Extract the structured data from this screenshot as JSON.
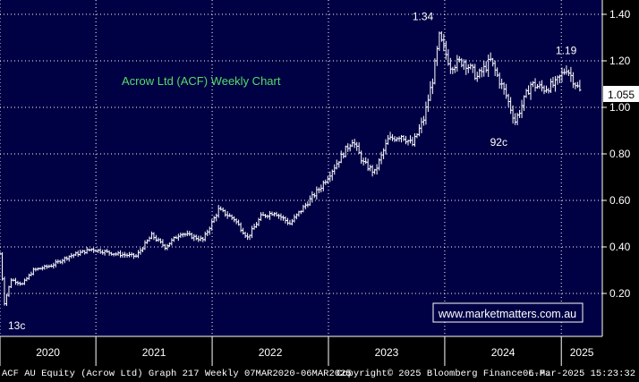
{
  "chart_data": {
    "type": "line",
    "style": "ohlc-weekly",
    "title": "Acrow Ltd (ACF) Weekly Chart",
    "xlabel": "",
    "ylabel": "",
    "x_ticks": [
      "2020",
      "2021",
      "2022",
      "2023",
      "2024",
      "2025"
    ],
    "y_ticks": [
      "0.20",
      "0.40",
      "0.60",
      "0.80",
      "1.00",
      "1.20",
      "1.40"
    ],
    "ylim": [
      0.0,
      1.44
    ],
    "grid": true,
    "last_price": "1.055",
    "annotations": [
      {
        "label": "13c",
        "date": "2020-03-20",
        "value": 0.13
      },
      {
        "label": "1.34",
        "date": "2023-12-15",
        "value": 1.34
      },
      {
        "label": "92c",
        "date": "2024-08-09",
        "value": 0.92
      },
      {
        "label": "1.19",
        "date": "2025-01-17",
        "value": 1.19
      }
    ],
    "series": [
      {
        "values": [
          [
            "2020-03-06",
            0.37
          ],
          [
            "2020-03-20",
            0.16
          ],
          [
            "2020-04-10",
            0.26
          ],
          [
            "2020-05-15",
            0.24
          ],
          [
            "2020-06-19",
            0.3
          ],
          [
            "2020-08-14",
            0.32
          ],
          [
            "2020-10-09",
            0.36
          ],
          [
            "2020-12-18",
            0.39
          ],
          [
            "2021-03-05",
            0.37
          ],
          [
            "2021-05-07",
            0.36
          ],
          [
            "2021-06-25",
            0.45
          ],
          [
            "2021-08-06",
            0.4
          ],
          [
            "2021-09-24",
            0.46
          ],
          [
            "2021-12-03",
            0.43
          ],
          [
            "2022-01-21",
            0.56
          ],
          [
            "2022-03-11",
            0.52
          ],
          [
            "2022-04-22",
            0.44
          ],
          [
            "2022-06-03",
            0.53
          ],
          [
            "2022-07-15",
            0.55
          ],
          [
            "2022-09-02",
            0.5
          ],
          [
            "2022-10-21",
            0.58
          ],
          [
            "2022-12-09",
            0.66
          ],
          [
            "2023-01-27",
            0.76
          ],
          [
            "2023-03-17",
            0.86
          ],
          [
            "2023-04-21",
            0.76
          ],
          [
            "2023-05-26",
            0.72
          ],
          [
            "2023-07-07",
            0.86
          ],
          [
            "2023-08-18",
            0.88
          ],
          [
            "2023-09-22",
            0.84
          ],
          [
            "2023-10-27",
            0.95
          ],
          [
            "2023-11-24",
            1.12
          ],
          [
            "2023-12-15",
            1.3
          ],
          [
            "2024-01-19",
            1.18
          ],
          [
            "2024-03-01",
            1.2
          ],
          [
            "2024-04-12",
            1.13
          ],
          [
            "2024-05-24",
            1.2
          ],
          [
            "2024-07-12",
            1.05
          ],
          [
            "2024-08-09",
            0.94
          ],
          [
            "2024-09-27",
            1.1
          ],
          [
            "2024-11-08",
            1.08
          ],
          [
            "2024-12-13",
            1.1
          ],
          [
            "2025-01-17",
            1.17
          ],
          [
            "2025-03-06",
            1.055
          ]
        ]
      }
    ]
  },
  "watermark": "www.marketmatters.com.au",
  "footer": {
    "left": "ACF AU Equity (Acrow Ltd) Graph 217  Weekly 07MAR2020-06MAR2025",
    "center": "Copyright© 2025 Bloomberg Finance L.P.",
    "right": "06-Mar-2025 15:23:32"
  },
  "colors": {
    "background": "#000044",
    "bars": "#ffffff",
    "grid": "#ffffff",
    "title": "#55dd66",
    "watermark_text": "#ffffff",
    "watermark_border": "#ffffff"
  }
}
